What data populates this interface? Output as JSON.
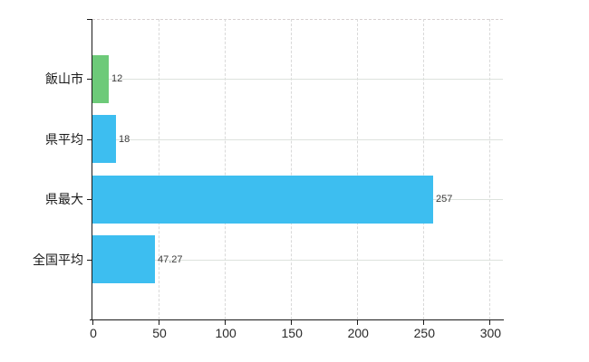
{
  "chart_data": {
    "type": "bar",
    "orientation": "horizontal",
    "title": "",
    "xlabel": "",
    "ylabel": "",
    "categories": [
      "飯山市",
      "県平均",
      "県最大",
      "全国平均"
    ],
    "values": [
      12,
      18,
      257,
      47.27
    ],
    "value_labels": [
      "12",
      "18",
      "257",
      "47.27"
    ],
    "bar_colors": [
      "#6dca79",
      "#3dbef0",
      "#3dbef0",
      "#3dbef0"
    ],
    "x_ticks": [
      0,
      50,
      100,
      150,
      200,
      250,
      300
    ],
    "x_tick_labels": [
      "0",
      "50",
      "100",
      "150",
      "200",
      "250",
      "300"
    ],
    "xlim": [
      0,
      310
    ],
    "grid": true,
    "grid_horizontal_at_category_centers": true,
    "legend": "none"
  },
  "colors": {
    "background": "#ffffff",
    "axis": "#1a1a1a",
    "gridline": "#dddddd",
    "bar_green": "#6dca79",
    "bar_blue": "#3dbef0",
    "label_text": "#1a1a1a",
    "value_text": "#3a3a3a"
  }
}
